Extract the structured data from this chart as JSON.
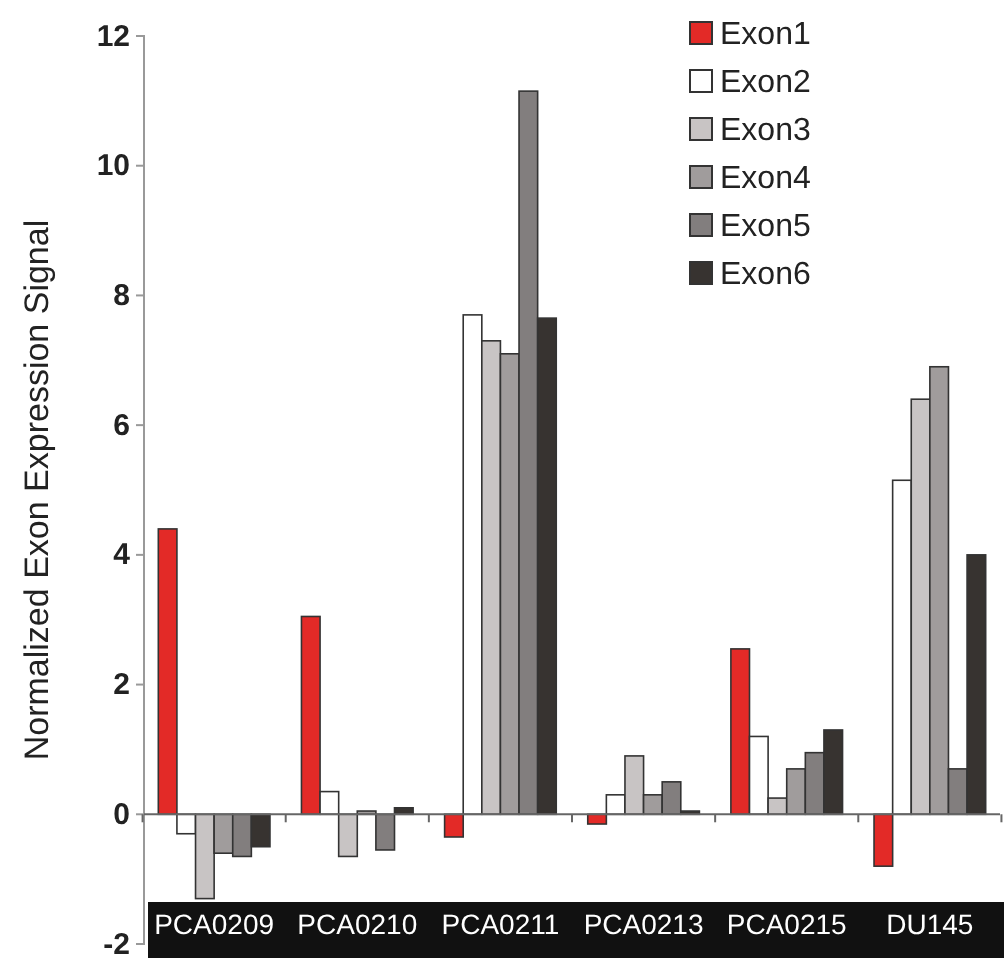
{
  "chart_data": {
    "type": "bar",
    "ylabel": "Normalized Exon Expression Signal",
    "categories": [
      "PCA0209",
      "PCA0210",
      "PCA0211",
      "PCA0213",
      "PCA0215",
      "DU145"
    ],
    "series": [
      {
        "name": "Exon1",
        "color": "#e32a27",
        "values": [
          4.4,
          3.05,
          -0.35,
          -0.15,
          2.55,
          -0.8
        ]
      },
      {
        "name": "Exon2",
        "color": "#ffffff",
        "values": [
          -0.3,
          0.35,
          7.7,
          0.3,
          1.2,
          5.15
        ]
      },
      {
        "name": "Exon3",
        "color": "#c8c4c4",
        "values": [
          -1.3,
          -0.65,
          7.3,
          0.9,
          0.25,
          6.4
        ]
      },
      {
        "name": "Exon4",
        "color": "#a09c9c",
        "values": [
          -0.6,
          0.05,
          7.1,
          0.3,
          0.7,
          6.9
        ]
      },
      {
        "name": "Exon5",
        "color": "#827e7e",
        "values": [
          -0.65,
          -0.55,
          11.15,
          0.5,
          0.95,
          0.7
        ]
      },
      {
        "name": "Exon6",
        "color": "#373330",
        "values": [
          -0.5,
          0.1,
          7.65,
          0.05,
          1.3,
          4.0
        ]
      }
    ],
    "ylim": [
      -2,
      12
    ],
    "yticks": [
      -2,
      0,
      2,
      4,
      6,
      8,
      10,
      12
    ],
    "legend": "top right"
  }
}
